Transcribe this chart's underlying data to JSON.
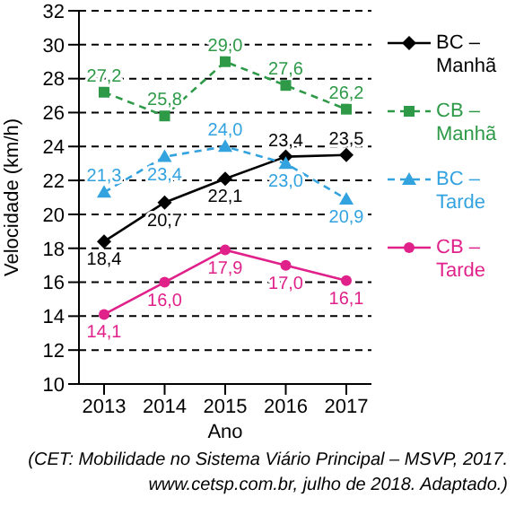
{
  "chart_data": {
    "type": "line",
    "categories": [
      "2013",
      "2014",
      "2015",
      "2016",
      "2017"
    ],
    "xlabel": "Ano",
    "ylabel": "Velocidade (km/h)",
    "ylim": [
      10,
      32
    ],
    "yticks": [
      10,
      12,
      14,
      16,
      18,
      20,
      22,
      24,
      26,
      28,
      30,
      32
    ],
    "grid": "y",
    "legend": "right",
    "series": [
      {
        "name": "BC – Manhã",
        "color": "#000000",
        "marker": "diamond",
        "line_style": "solid",
        "values": [
          18.4,
          20.7,
          22.1,
          23.4,
          23.5
        ],
        "value_labels": [
          "18,4",
          "20,7",
          "22,1",
          "23,4",
          "23,5"
        ]
      },
      {
        "name": "CB – Manhã",
        "color": "#2e9a48",
        "marker": "square",
        "line_style": "dashed",
        "values": [
          27.2,
          25.8,
          29.0,
          27.6,
          26.2
        ],
        "value_labels": [
          "27,2",
          "25,8",
          "29,0",
          "27,6",
          "26,2"
        ]
      },
      {
        "name": "BC – Tarde",
        "color": "#33a3e0",
        "marker": "triangle",
        "line_style": "dashed",
        "values": [
          21.3,
          23.4,
          24.0,
          23.0,
          20.9
        ],
        "value_labels": [
          "21,3",
          "23,4",
          "24,0",
          "23,0",
          "20,9"
        ]
      },
      {
        "name": "CB – Tarde",
        "color": "#e0218a",
        "marker": "circle",
        "line_style": "solid",
        "values": [
          14.1,
          16.0,
          17.9,
          17.0,
          16.1
        ],
        "value_labels": [
          "14,1",
          "16,0",
          "17,9",
          "17,0",
          "16,1"
        ]
      }
    ],
    "annotations": [
      "(CET: Mobilidade no Sistema Viário Principal – MSVP, 2017. www.cetsp.com.br, julho de 2018. Adaptado.)"
    ]
  }
}
